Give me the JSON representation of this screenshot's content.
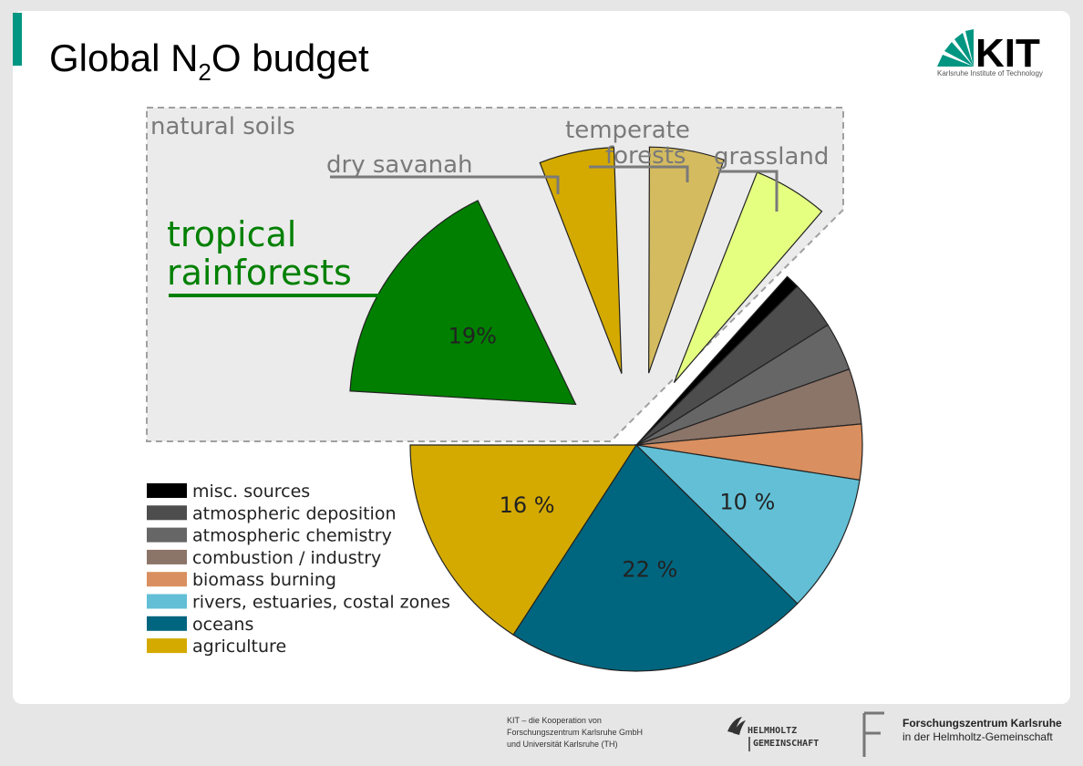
{
  "slide": {
    "title_main": "Global N",
    "title_sub": "2",
    "title_end": "O budget",
    "logo_text": "KIT",
    "logo_subtitle": "Karlsruhe Institute of Technology",
    "footer_lines": [
      "KIT – die Kooperation von",
      "Forschungszentrum Karlsruhe GmbH",
      "und Universität Karlsruhe (TH)"
    ],
    "helmholtz_line1": "HELMHOLTZ",
    "helmholtz_line2": "GEMEINSCHAFT",
    "fzk_line1": "Forschungszentrum Karlsruhe",
    "fzk_line2": "in der Helmholtz-Gemeinschaft",
    "colors": {
      "accent": "#009682",
      "slide_bg": "#ffffff",
      "page_bg": "#e6e6e6"
    }
  },
  "chart_data": {
    "type": "pie",
    "group_label": "natural soils",
    "slices": [
      {
        "name": "tropical rainforests",
        "value": 19,
        "label": "19%",
        "color": "#007f00",
        "exploded": true
      },
      {
        "name": "dry savanah",
        "value": 6,
        "label": "",
        "color": "#d4aa00",
        "exploded": true
      },
      {
        "name": "temperate forests",
        "value": 6,
        "label": "",
        "color": "#d4bb5f",
        "exploded": true
      },
      {
        "name": "grassland",
        "value": 6,
        "label": "",
        "color": "#e5ff80",
        "exploded": true
      },
      {
        "name": "misc. sources",
        "value": 1,
        "label": "",
        "color": "#000000",
        "exploded": false
      },
      {
        "name": "atmospheric deposition",
        "value": 3.5,
        "label": "",
        "color": "#4d4d4d",
        "exploded": false
      },
      {
        "name": "atmospheric chemistry",
        "value": 3.5,
        "label": "",
        "color": "#666666",
        "exploded": false
      },
      {
        "name": "combustion / industry",
        "value": 4,
        "label": "",
        "color": "#8b7468",
        "exploded": false
      },
      {
        "name": "biomass burning",
        "value": 4,
        "label": "",
        "color": "#d98f5f",
        "exploded": false
      },
      {
        "name": "rivers, estuaries, costal zones",
        "value": 10,
        "label": "10 %",
        "color": "#62bfd6",
        "exploded": false
      },
      {
        "name": "oceans",
        "value": 22,
        "label": "22 %",
        "color": "#00667f",
        "exploded": false
      },
      {
        "name": "agriculture",
        "value": 16,
        "label": "16 %",
        "color": "#d4aa00",
        "exploded": false
      }
    ],
    "legend": [
      {
        "label": "misc. sources",
        "color": "#000000"
      },
      {
        "label": "atmospheric deposition",
        "color": "#4d4d4d"
      },
      {
        "label": "atmospheric chemistry",
        "color": "#666666"
      },
      {
        "label": "combustion / industry",
        "color": "#8b7468"
      },
      {
        "label": "biomass burning",
        "color": "#d98f5f"
      },
      {
        "label": "rivers, estuaries, costal zones",
        "color": "#62bfd6"
      },
      {
        "label": "oceans",
        "color": "#00667f"
      },
      {
        "label": "agriculture",
        "color": "#d4aa00"
      }
    ],
    "callouts": {
      "tropical": [
        "tropical",
        "rainforests"
      ],
      "savanah": "dry savanah",
      "temperate": [
        "temperate",
        "forests"
      ],
      "grassland": "grassland"
    }
  }
}
